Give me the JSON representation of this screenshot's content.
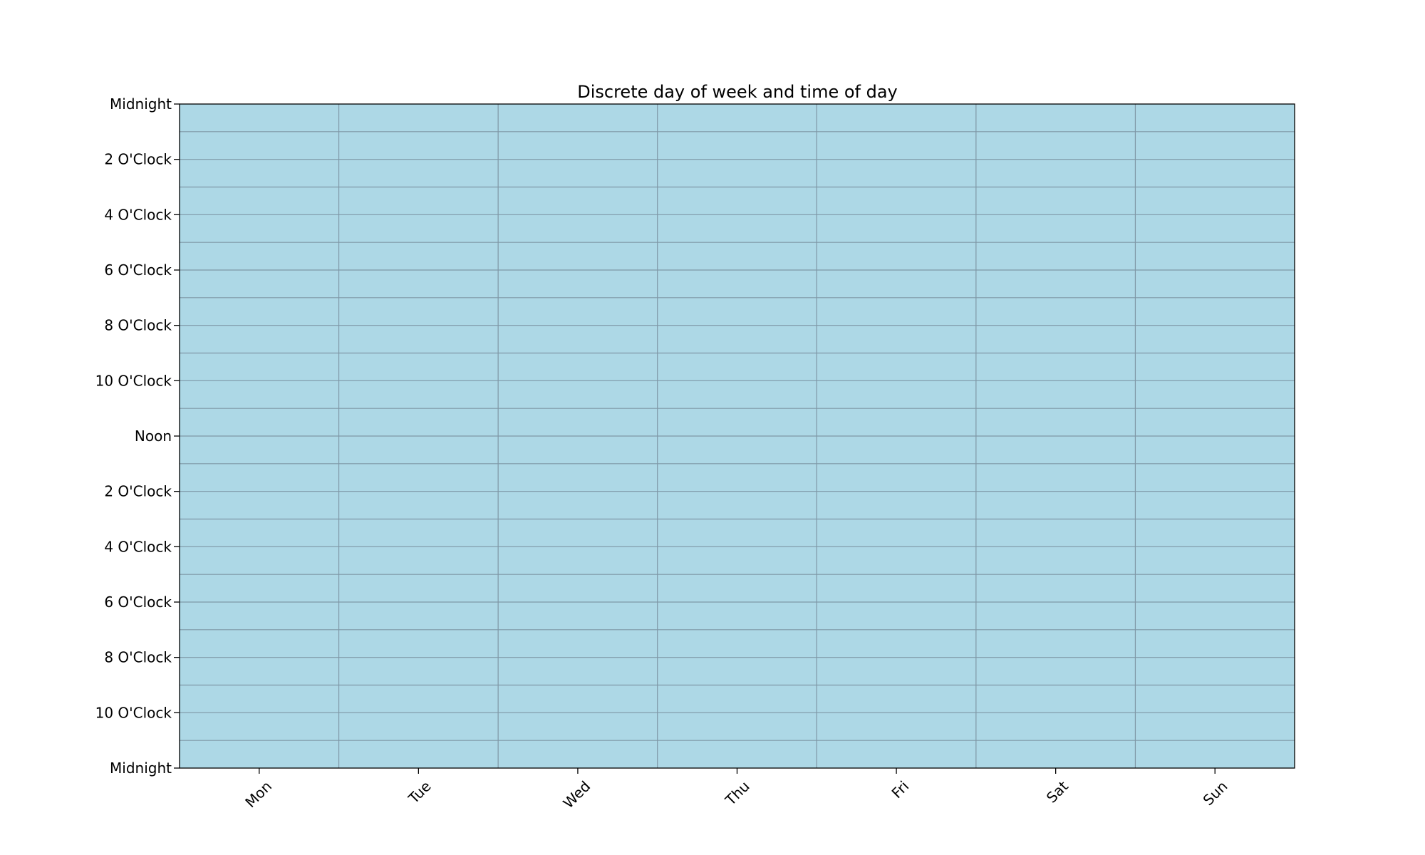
{
  "chart_data": {
    "type": "heatmap",
    "title": "Discrete day of week and time of day",
    "xlabel": "",
    "ylabel": "",
    "x_categories": [
      "Mon",
      "Tue",
      "Wed",
      "Thu",
      "Fri",
      "Sat",
      "Sun"
    ],
    "y_range": [
      0,
      24
    ],
    "y_tick_values": [
      0,
      2,
      4,
      6,
      8,
      10,
      12,
      14,
      16,
      18,
      20,
      22,
      24
    ],
    "y_tick_labels": [
      "Midnight",
      "2 O'Clock",
      "4 O'Clock",
      "6 O'Clock",
      "8 O'Clock",
      "10 O'Clock",
      "Noon",
      "2 O'Clock",
      "4 O'Clock",
      "6 O'Clock",
      "8 O'Clock",
      "10 O'Clock",
      "Midnight"
    ],
    "hours_per_cell": 1,
    "cell_color": "#add8e6",
    "grid_line_color": "#7f97a6",
    "grid": true,
    "x_tick_rotation_deg": 45
  }
}
